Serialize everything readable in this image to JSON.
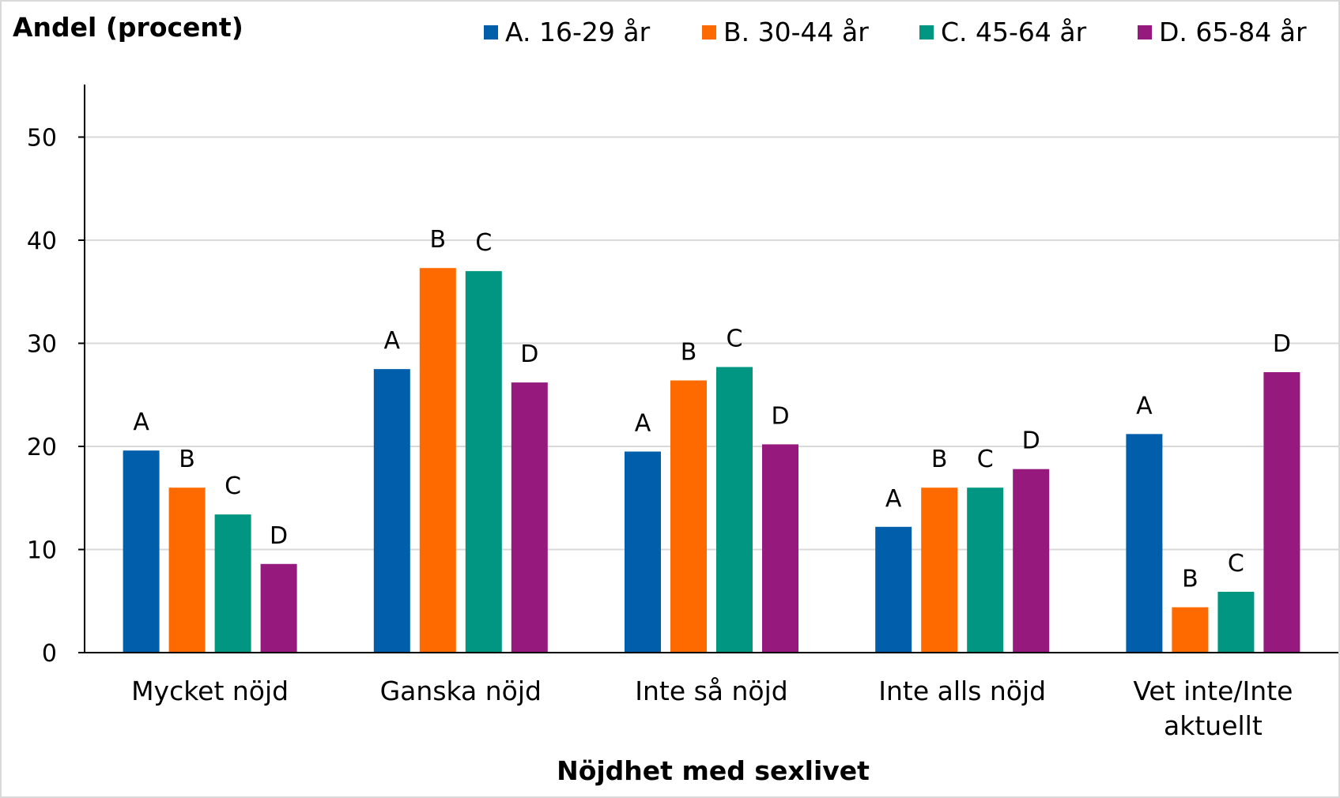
{
  "chart_data": {
    "type": "bar",
    "ylabel": "Andel (procent)",
    "xlabel": "Nöjdhet med sexlivet",
    "ylim": [
      0,
      55
    ],
    "yticks": [
      0,
      10,
      20,
      30,
      40,
      50
    ],
    "grid": true,
    "legend_position": "top",
    "categories": [
      "Mycket nöjd",
      "Ganska nöjd",
      "Inte så nöjd",
      "Inte alls nöjd",
      "Vet inte/Inte aktuellt"
    ],
    "series": [
      {
        "name": "A. 16-29 år",
        "letter": "A",
        "color": "#005eaa",
        "values": [
          19.6,
          27.5,
          19.5,
          12.2,
          21.2
        ]
      },
      {
        "name": "B. 30-44 år",
        "letter": "B",
        "color": "#ff6a00",
        "values": [
          16.0,
          37.3,
          26.4,
          16.0,
          4.4
        ]
      },
      {
        "name": "C. 45-64 år",
        "letter": "C",
        "color": "#009682",
        "values": [
          13.4,
          37.0,
          27.7,
          16.0,
          5.9
        ]
      },
      {
        "name": "D. 65-84 år",
        "letter": "D",
        "color": "#961a7d",
        "values": [
          8.6,
          26.2,
          20.2,
          17.8,
          27.2
        ]
      }
    ]
  }
}
